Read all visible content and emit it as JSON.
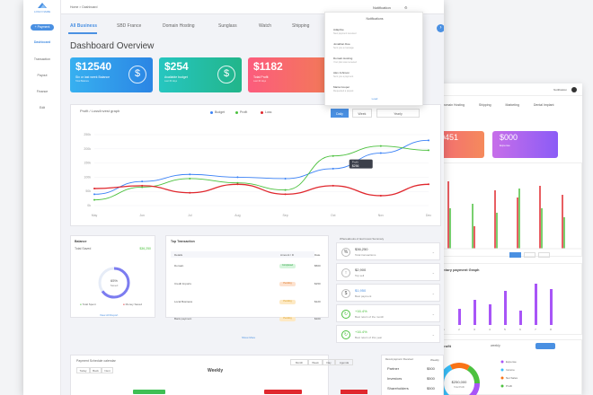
{
  "colors": {
    "accent": "#4a90e2",
    "budget": "#3b82f6",
    "profit": "#4cc13f",
    "loss": "#e0282e"
  },
  "app": {
    "logo_text": "LOGO NAME"
  },
  "sidebar": {
    "new_button": "+ Payment",
    "items": [
      "Dashboard",
      "Transaction",
      "Payout",
      "Finance",
      "Edit"
    ]
  },
  "topbar": {
    "breadcrumb": "Home > Dashboard",
    "notification_label": "Notification"
  },
  "tabs": [
    "All Business",
    "SBD France",
    "Domain Hosting",
    "Sunglass",
    "Watch",
    "Shipping"
  ],
  "page_title": "Dashboard Overview",
  "stats": [
    {
      "value": "$12540",
      "label": "Six or last week Balance",
      "sub": "Total Balance"
    },
    {
      "value": "$254",
      "label": "Available budget",
      "sub": "Last 30 days"
    },
    {
      "value": "$1182",
      "label": "Total Profit",
      "sub": "Last 30 days"
    }
  ],
  "notifications": {
    "header": "Notifications",
    "items": [
      {
        "name": "Adaptive",
        "text": "New payment received"
      },
      {
        "name": "Jonathan Doe",
        "text": "Sent you a message"
      },
      {
        "name": "Domain Hosting",
        "text": "Your plan was renewed"
      },
      {
        "name": "Alex Johnson",
        "text": "Sent you a payment"
      },
      {
        "name": "Maria Cooper",
        "text": "Requested a payout"
      }
    ],
    "footer": "Load"
  },
  "graph": {
    "title": "Profit / Loss/Invest graph",
    "legend": [
      "Budget",
      "Profit",
      "Loss"
    ],
    "segments": [
      "Daily",
      "Week",
      "Yearly"
    ],
    "tooltip_label": "Profit",
    "tooltip_value": "$256"
  },
  "chart_data": {
    "type": "line",
    "x": [
      "May",
      "Jun",
      "Jul",
      "Aug",
      "Sep",
      "Oct",
      "Nov",
      "Dec"
    ],
    "yticks": [
      "250k",
      "200k",
      "150k",
      "100k",
      "50k",
      "0k"
    ],
    "ylim": [
      0,
      250
    ],
    "series": [
      {
        "name": "Budget",
        "color": "#3b82f6",
        "values": [
          40,
          85,
          110,
          100,
          95,
          130,
          185,
          230
        ]
      },
      {
        "name": "Profit",
        "color": "#4cc13f",
        "values": [
          20,
          65,
          95,
          80,
          55,
          175,
          210,
          195
        ]
      },
      {
        "name": "Loss",
        "color": "#e0282e",
        "values": [
          60,
          70,
          45,
          75,
          40,
          70,
          35,
          75
        ]
      }
    ]
  },
  "balance": {
    "title": "Balance",
    "total_label": "Total Saved",
    "total_value": "$36,250",
    "percent": 0.65,
    "percent_text": "65%",
    "center_sub": "Saved",
    "legend_spent": "Total Spent",
    "legend_saved": "Money Saved",
    "link": "View All Report"
  },
  "transactions": {
    "title": "Top Transaction",
    "columns": [
      "Details",
      "Amount / D",
      "Date"
    ],
    "rows": [
      {
        "name": "Domain",
        "status": "Completed",
        "amt": "$500"
      },
      {
        "name": "Credit Imports",
        "status": "Pending",
        "amt": "$150"
      },
      {
        "name": "Local Business",
        "status": "Pending",
        "amt": "$120"
      },
      {
        "name": "Bank payment",
        "status": "Pending",
        "amt": "$100"
      }
    ],
    "footer": "Show More"
  },
  "activities": {
    "title": "Whereabouts of last Invest Summary",
    "items": [
      {
        "icon": "%",
        "value": "$36,250",
        "label": "Total transactions"
      },
      {
        "icon": "↑",
        "value": "$2,900",
        "label": "Top sell"
      },
      {
        "icon": "$",
        "value": "$1,950",
        "label": "Best payment"
      },
      {
        "icon": "↻",
        "value": "+16.4%",
        "label": "Best return of the month"
      },
      {
        "icon": "↻",
        "value": "+16.4%",
        "label": "Best return of this year"
      }
    ]
  },
  "calendar": {
    "title": "Payment Schedule calendar",
    "week_label": "Weekly",
    "views": [
      "Today",
      "Back",
      "Next"
    ],
    "period_tabs": [
      "Month",
      "Week",
      "Day",
      "Agenda"
    ]
  },
  "schedule": {
    "title": "Recent payment / Received",
    "label": "Weekly",
    "rows": [
      {
        "name": "Partner",
        "amount": "$500"
      },
      {
        "name": "Investors",
        "amount": "$500"
      },
      {
        "name": "Shareholders",
        "amount": "$500"
      }
    ]
  },
  "back_dashboard": {
    "notification_label": "Notification",
    "tabs": [
      "Domain Hosting",
      "Shipping",
      "Marketing",
      "Dental Implant"
    ],
    "card_red_value": "0451",
    "card_purple_value": "$000",
    "card_purple_label": "Expense",
    "bar_title": "ntory payment Graph",
    "donut_title": "lig profit",
    "donut_sub": "weekly",
    "donut_value": "$250,000",
    "donut_value_sub": "Total Profit",
    "bar_x": [
      "1",
      "2",
      "3",
      "4",
      "5",
      "6",
      "7",
      "8"
    ],
    "legend": [
      "Expense",
      "Income",
      "Net Sales",
      "Profit"
    ]
  }
}
